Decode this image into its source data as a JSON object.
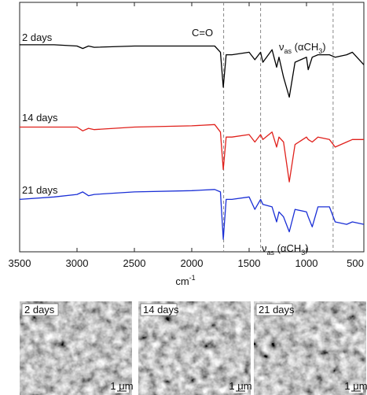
{
  "chart_data": {
    "type": "line",
    "x_label": [
      "cm",
      "-1"
    ],
    "xlim": [
      3500,
      500
    ],
    "xticks": [
      3500,
      3000,
      2500,
      2000,
      1500,
      1000,
      500
    ],
    "ylim": [
      0,
      100
    ],
    "x": [
      3500,
      3200,
      3000,
      2950,
      2900,
      2850,
      2500,
      2000,
      1800,
      1750,
      1725,
      1700,
      1650,
      1500,
      1450,
      1400,
      1380,
      1300,
      1260,
      1240,
      1200,
      1150,
      1100,
      1000,
      985,
      950,
      900,
      800,
      750,
      650,
      600,
      500
    ],
    "series": [
      {
        "name": "2 days",
        "color": "#000000",
        "values": [
          83,
          83,
          82.5,
          81.5,
          82.5,
          82,
          82.5,
          82.5,
          82.5,
          80,
          66,
          79,
          79,
          80,
          77,
          80,
          76,
          81,
          74,
          78,
          70,
          62,
          76,
          78,
          73,
          78,
          79,
          79,
          78,
          79,
          80,
          75
        ]
      },
      {
        "name": "14 days",
        "color": "#e0201b",
        "values": [
          50,
          50,
          50,
          48.5,
          49.5,
          49,
          50,
          50.5,
          51,
          48,
          33,
          46,
          46,
          47,
          44,
          47,
          45,
          48,
          42,
          46,
          44,
          28,
          43,
          46,
          45,
          44,
          46,
          45,
          42,
          44,
          45,
          45
        ]
      },
      {
        "name": "21 days",
        "color": "#1a2fd6",
        "values": [
          21,
          22,
          23,
          24,
          22.5,
          23,
          24,
          24.5,
          25,
          24,
          5,
          21,
          21,
          22,
          17,
          21,
          19,
          18,
          12,
          16,
          14,
          8,
          17,
          16,
          14,
          10,
          18,
          18,
          12,
          11,
          12,
          11
        ]
      }
    ],
    "vlines": [
      1722,
      1400,
      768
    ],
    "annotations": [
      {
        "text": [
          "C=O"
        ]
      },
      {
        "text": [
          "ν",
          "as",
          " (αCH",
          "3",
          ")"
        ]
      },
      {
        "text": [
          "ν",
          "as",
          " (αCH",
          "3",
          ")"
        ]
      }
    ]
  },
  "panels": [
    {
      "label": "2 days",
      "scale_bar": "1 μm"
    },
    {
      "label": "14 days",
      "scale_bar": "1 μm"
    },
    {
      "label": "21 days",
      "scale_bar": "1 μm"
    }
  ]
}
